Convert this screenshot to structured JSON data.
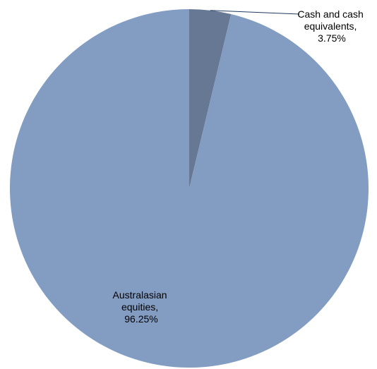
{
  "chart_data": {
    "type": "pie",
    "title": "",
    "slices": [
      {
        "name": "Cash and cash equivalents",
        "value": 3.75,
        "value_label": "3.75%",
        "label_lines": [
          "Cash and cash",
          "equivalents,",
          "3.75%"
        ],
        "color": "#667894"
      },
      {
        "name": "Australasian equities",
        "value": 96.25,
        "value_label": "96.25%",
        "label_lines": [
          "Australasian",
          "equities,",
          "96.25%"
        ],
        "color": "#839dc2"
      }
    ],
    "start_angle": "12 o'clock",
    "direction": "clockwise",
    "legend": "none",
    "label_style": "category name and percentage; leader line for the small slice"
  }
}
